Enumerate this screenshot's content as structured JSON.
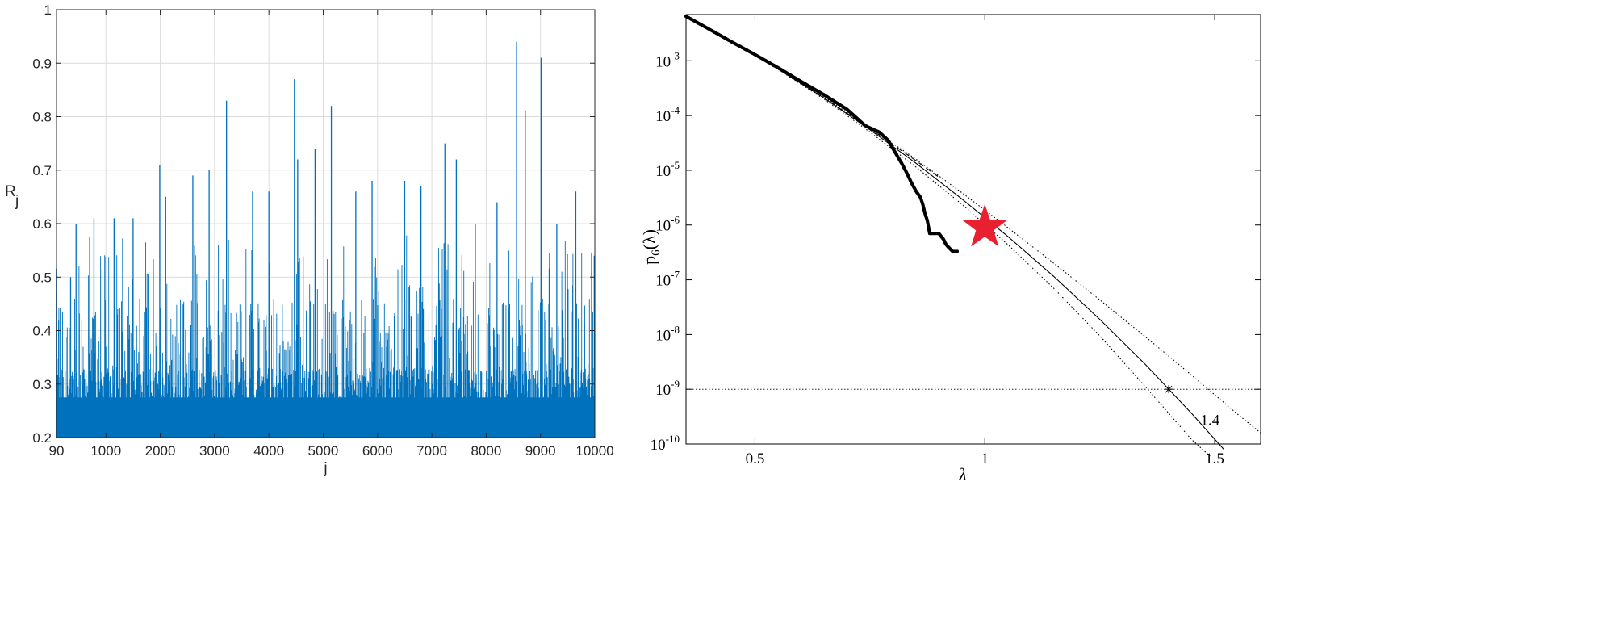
{
  "colors": {
    "series": "#0072bd",
    "grid": "#dcdcdc",
    "star": "#e8202f",
    "ink": "#000000"
  },
  "chart_data": [
    {
      "type": "bar",
      "xlabel": "j",
      "ylabel": "R",
      "ylabel_sub": "j",
      "xlim": [
        90,
        10000
      ],
      "ylim": [
        0.2,
        1
      ],
      "grid": true,
      "x_ticks": [
        90,
        1000,
        2000,
        3000,
        4000,
        5000,
        6000,
        7000,
        8000,
        9000,
        10000
      ],
      "y_ticks": [
        0.2,
        0.3,
        0.4,
        0.5,
        0.6,
        0.7,
        0.8,
        0.9,
        1
      ],
      "x_tick_labels": [
        "90",
        "1000",
        "2000",
        "3000",
        "4000",
        "5000",
        "6000",
        "7000",
        "8000",
        "9000",
        "10000"
      ],
      "y_tick_labels": [
        "0.2",
        "0.3",
        "0.4",
        "0.5",
        "0.6",
        "0.7",
        "0.8",
        "0.9",
        "1"
      ],
      "n_points": 9911,
      "baseline_range": [
        0.22,
        0.33
      ],
      "peaks": [
        {
          "x": 90,
          "y": 0.47
        },
        {
          "x": 130,
          "y": 0.42
        },
        {
          "x": 350,
          "y": 0.5
        },
        {
          "x": 450,
          "y": 0.6
        },
        {
          "x": 780,
          "y": 0.61
        },
        {
          "x": 1150,
          "y": 0.61
        },
        {
          "x": 1500,
          "y": 0.61
        },
        {
          "x": 1990,
          "y": 0.71
        },
        {
          "x": 2100,
          "y": 0.65
        },
        {
          "x": 2600,
          "y": 0.69
        },
        {
          "x": 2900,
          "y": 0.7
        },
        {
          "x": 3220,
          "y": 0.83
        },
        {
          "x": 3700,
          "y": 0.66
        },
        {
          "x": 4000,
          "y": 0.66
        },
        {
          "x": 4470,
          "y": 0.87
        },
        {
          "x": 4530,
          "y": 0.72
        },
        {
          "x": 4850,
          "y": 0.74
        },
        {
          "x": 5150,
          "y": 0.82
        },
        {
          "x": 5600,
          "y": 0.66
        },
        {
          "x": 5900,
          "y": 0.68
        },
        {
          "x": 6500,
          "y": 0.68
        },
        {
          "x": 6800,
          "y": 0.67
        },
        {
          "x": 7240,
          "y": 0.75
        },
        {
          "x": 7450,
          "y": 0.72
        },
        {
          "x": 7800,
          "y": 0.6
        },
        {
          "x": 8200,
          "y": 0.64
        },
        {
          "x": 8560,
          "y": 0.94
        },
        {
          "x": 8720,
          "y": 0.81
        },
        {
          "x": 9010,
          "y": 0.91
        },
        {
          "x": 9300,
          "y": 0.6
        },
        {
          "x": 9650,
          "y": 0.66
        },
        {
          "x": 9990,
          "y": 0.54
        }
      ]
    },
    {
      "type": "line",
      "xlabel": "λ",
      "ylabel": "p_6(λ)",
      "ylabel_parts": {
        "base": "p",
        "sub": "6",
        "arg": "(λ)"
      },
      "y_scale": "log",
      "xlim": [
        0.35,
        1.6
      ],
      "ylim": [
        1e-10,
        0.007
      ],
      "x_ticks": [
        0.5,
        1,
        1.5
      ],
      "x_tick_labels": [
        "0.5",
        "1",
        "1.5"
      ],
      "y_ticks": [
        -10,
        -9,
        -8,
        -7,
        -6,
        -5,
        -4,
        -3
      ],
      "y_tick_labels": [
        "10",
        "10",
        "10",
        "10",
        "10",
        "10",
        "10",
        "10"
      ],
      "y_tick_exponents": [
        "-10",
        "-9",
        "-8",
        "-7",
        "-6",
        "-5",
        "-4",
        "-3"
      ],
      "annotation": "1.4",
      "threshold_line": {
        "y": 1e-09,
        "style": "dotted"
      },
      "marker": {
        "x": 1.4,
        "y": 1e-09,
        "symbol": "*"
      },
      "highlight_star": {
        "x": 1.0,
        "y": 9e-07,
        "color": "#e8202f"
      },
      "series": [
        {
          "style": "solid",
          "x": [
            0.35,
            0.45,
            0.55,
            0.65,
            0.75,
            0.85,
            0.95,
            1.05,
            1.15,
            1.25,
            1.35,
            1.45,
            1.52
          ],
          "y": [
            0.0065,
            0.0022,
            0.00071,
            0.00021,
            5.5e-05,
            1.35e-05,
            3e-06,
            6.2e-07,
            1.15e-07,
            1.9e-08,
            2.8e-09,
            3.6e-10,
            8e-11
          ]
        },
        {
          "style": "dotted",
          "x": [
            0.35,
            0.45,
            0.55,
            0.65,
            0.75,
            0.85,
            0.95,
            1.05,
            1.15,
            1.25,
            1.35,
            1.45,
            1.55,
            1.6
          ],
          "y": [
            0.0065,
            0.0022,
            0.00072,
            0.00022,
            6e-05,
            1.6e-05,
            3.9e-06,
            9e-07,
            2e-07,
            4.3e-08,
            9e-09,
            1.8e-09,
            3.5e-10,
            1.6e-10
          ]
        },
        {
          "style": "dotted",
          "x": [
            0.35,
            0.45,
            0.55,
            0.65,
            0.75,
            0.85,
            0.95,
            1.05,
            1.15,
            1.25,
            1.35,
            1.45,
            1.49
          ],
          "y": [
            0.0065,
            0.0022,
            0.0007,
            0.0002,
            5e-05,
            1.15e-05,
            2.4e-06,
            4.4e-07,
            7e-08,
            9.5e-09,
            1.1e-09,
            1.2e-10,
            6e-11
          ]
        },
        {
          "style": "dashed",
          "x": [
            0.35,
            0.45,
            0.55,
            0.65,
            0.75,
            0.85,
            0.9
          ],
          "y": [
            0.0065,
            0.0022,
            0.00071,
            0.00021,
            5.8e-05,
            1.5e-05,
            7.5e-06
          ]
        },
        {
          "style": "points",
          "x": [
            0.35,
            0.4,
            0.45,
            0.5,
            0.55,
            0.6,
            0.65,
            0.7,
            0.74,
            0.77,
            0.79,
            0.8,
            0.81,
            0.82,
            0.83,
            0.84,
            0.85,
            0.86,
            0.865,
            0.87,
            0.875,
            0.88,
            0.885,
            0.89,
            0.9,
            0.91,
            0.915,
            0.92,
            0.93,
            0.94
          ],
          "y": [
            0.0065,
            0.0038,
            0.0022,
            0.0013,
            0.00075,
            0.00042,
            0.00024,
            0.00013,
            6.5e-05,
            5e-05,
            3.5e-05,
            2.5e-05,
            1.8e-05,
            1.3e-05,
            9e-06,
            6e-06,
            4.2e-06,
            3.2e-06,
            2.4e-06,
            1.6e-06,
            1.2e-06,
            7e-07,
            7e-07,
            7e-07,
            7e-07,
            5.5e-07,
            4.5e-07,
            4e-07,
            3.3e-07,
            3.3e-07
          ]
        }
      ]
    }
  ]
}
